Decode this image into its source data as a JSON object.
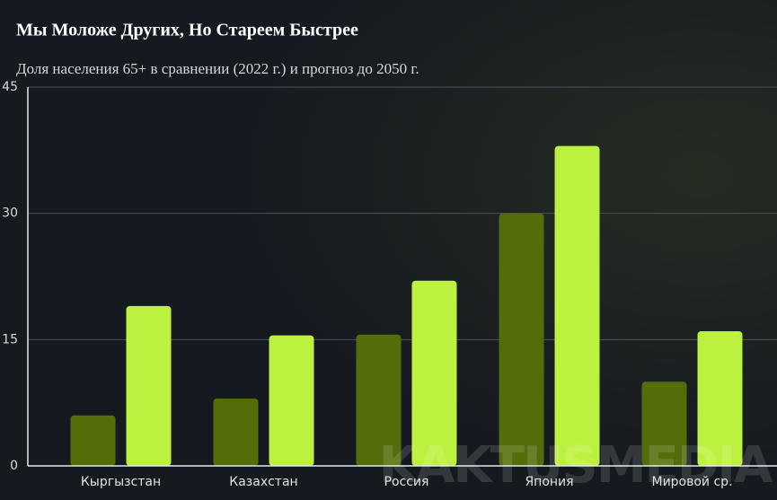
{
  "chart_data": {
    "type": "bar",
    "title": "Мы Моложе Других, Но Стареем Быстрее",
    "subtitle": "Доля населения 65+ в сравнении (2022 г.) и прогноз до 2050 г.",
    "categories": [
      "Кыргызстан",
      "Казахстан",
      "Россия",
      "Япония",
      "Мировой ср."
    ],
    "series": [
      {
        "color": "#546d0b",
        "values": [
          6,
          8,
          15.6,
          30,
          10
        ]
      },
      {
        "color": "#bdf13f",
        "values": [
          19,
          15.5,
          22,
          38,
          16
        ]
      }
    ],
    "ylim": [
      0,
      45
    ],
    "yticks": [
      0,
      15,
      30,
      45
    ],
    "grid": true,
    "watermark": "KAKTUSMEDIA"
  }
}
